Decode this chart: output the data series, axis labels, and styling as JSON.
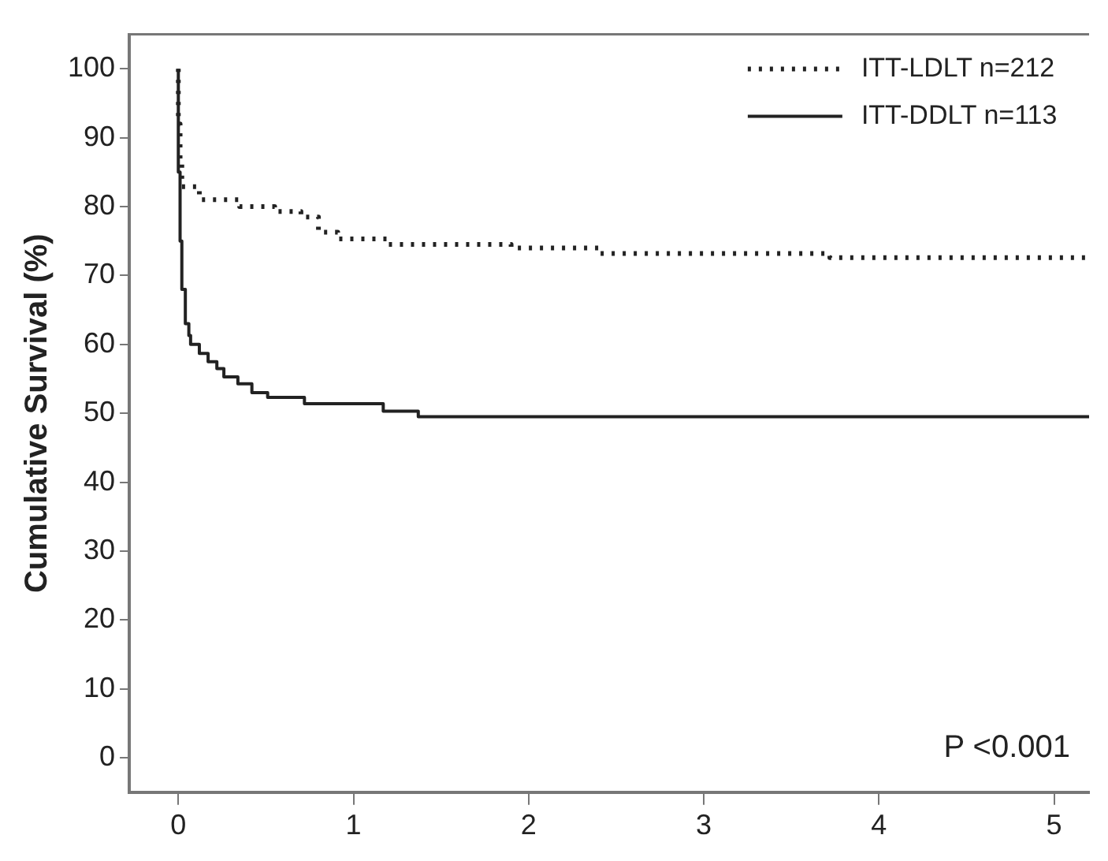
{
  "chart_data": {
    "type": "step",
    "ylabel": "Cumulative Survival (%)",
    "xlim": [
      -0.28,
      5.2
    ],
    "xticks": [
      0,
      1,
      2,
      3,
      4,
      5
    ],
    "ylim": [
      -5,
      105
    ],
    "yticks": [
      0,
      10,
      20,
      30,
      40,
      50,
      60,
      70,
      80,
      90,
      100
    ],
    "grid": false,
    "legend": "top right",
    "marker": "none",
    "annotations": [
      "P <0.001"
    ],
    "series": [
      {
        "name": "ITT-LDLT n=212",
        "color": "#222222",
        "line_style": "dotted",
        "x": [
          0,
          0.01,
          0.02,
          0.12,
          0.35,
          0.55,
          0.7,
          0.8,
          0.91,
          1.2,
          1.9,
          2.4,
          3.72,
          4.34,
          5.2
        ],
        "values": [
          100,
          92,
          86.6,
          82.9,
          81,
          80,
          79.3,
          78.5,
          76.3,
          75.3,
          74.5,
          74,
          73.2,
          72.6,
          72.6
        ]
      },
      {
        "name": "ITT-DDLT n=113",
        "color": "#222222",
        "line_style": "solid",
        "x": [
          0,
          0.01,
          0.02,
          0.04,
          0.06,
          0.07,
          0.12,
          0.17,
          0.22,
          0.26,
          0.34,
          0.42,
          0.51,
          0.72,
          1.17,
          1.37,
          2.6,
          5.2
        ],
        "values": [
          100,
          85,
          75,
          68,
          63,
          61.3,
          60,
          58.7,
          57.5,
          56.5,
          55.3,
          54.3,
          53,
          52.3,
          51.4,
          50.3,
          49.5,
          49.5
        ]
      }
    ]
  }
}
